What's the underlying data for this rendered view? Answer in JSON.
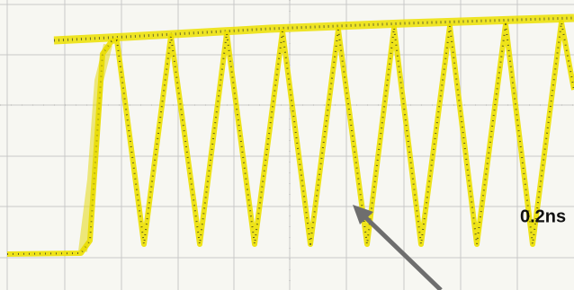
{
  "annotation": "0.2ns"
}
